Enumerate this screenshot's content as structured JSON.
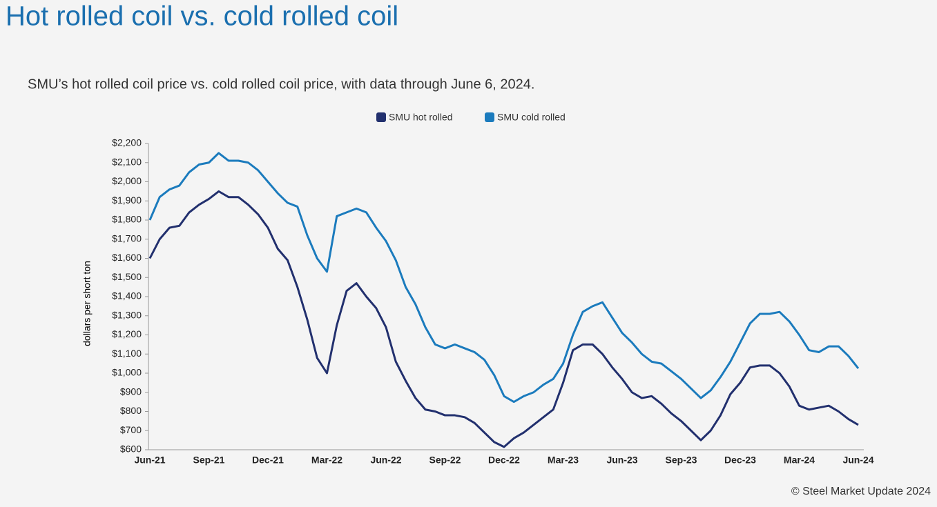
{
  "chart_data": {
    "type": "line",
    "title": "Hot rolled coil vs. cold rolled coil",
    "subtitle": "SMU’s hot rolled coil price vs. cold rolled coil price, with data through June 6, 2024.",
    "y_label": "dollars per short ton",
    "source": "© Steel Market Update 2024",
    "categories": [
      "Jun-21",
      null,
      null,
      null,
      null,
      null,
      "Sep-21",
      null,
      null,
      null,
      null,
      null,
      "Dec-21",
      null,
      null,
      null,
      null,
      null,
      "Mar-22",
      null,
      null,
      null,
      null,
      null,
      "Jun-22",
      null,
      null,
      null,
      null,
      null,
      "Sep-22",
      null,
      null,
      null,
      null,
      null,
      "Dec-22",
      null,
      null,
      null,
      null,
      null,
      "Mar-23",
      null,
      null,
      null,
      null,
      null,
      "Jun-23",
      null,
      null,
      null,
      null,
      null,
      "Sep-23",
      null,
      null,
      null,
      null,
      null,
      "Dec-23",
      null,
      null,
      null,
      null,
      null,
      "Mar-24",
      null,
      null,
      null,
      null,
      null,
      "Jun-24"
    ],
    "series": [
      {
        "name": "SMU hot rolled",
        "color": "#22306e",
        "values": [
          1600,
          1700,
          1760,
          1770,
          1840,
          1880,
          1910,
          1950,
          1920,
          1920,
          1880,
          1830,
          1760,
          1650,
          1590,
          1450,
          1280,
          1080,
          1000,
          1250,
          1430,
          1470,
          1400,
          1340,
          1240,
          1060,
          960,
          870,
          810,
          800,
          780,
          780,
          770,
          740,
          690,
          640,
          615,
          660,
          690,
          730,
          770,
          810,
          950,
          1120,
          1150,
          1150,
          1100,
          1030,
          970,
          900,
          870,
          880,
          840,
          790,
          750,
          700,
          650,
          700,
          780,
          890,
          950,
          1030,
          1040,
          1040,
          1000,
          930,
          830,
          810,
          820,
          830,
          800,
          760,
          730
        ]
      },
      {
        "name": "SMU cold rolled",
        "color": "#1b7bbd",
        "values": [
          1800,
          1920,
          1960,
          1980,
          2050,
          2090,
          2100,
          2150,
          2110,
          2110,
          2100,
          2060,
          2000,
          1940,
          1890,
          1870,
          1720,
          1600,
          1530,
          1820,
          1840,
          1860,
          1840,
          1760,
          1690,
          1590,
          1450,
          1360,
          1240,
          1150,
          1130,
          1150,
          1130,
          1110,
          1070,
          990,
          880,
          850,
          880,
          900,
          940,
          970,
          1050,
          1200,
          1320,
          1350,
          1370,
          1290,
          1210,
          1160,
          1100,
          1060,
          1050,
          1010,
          970,
          920,
          870,
          910,
          980,
          1060,
          1160,
          1260,
          1310,
          1310,
          1320,
          1270,
          1200,
          1120,
          1110,
          1140,
          1140,
          1090,
          1025
        ]
      }
    ],
    "ylim": [
      600,
      2200
    ],
    "yticks": [
      {
        "value": 600,
        "label": "$600"
      },
      {
        "value": 700,
        "label": "$700"
      },
      {
        "value": 800,
        "label": "$800"
      },
      {
        "value": 900,
        "label": "$900"
      },
      {
        "value": 1000,
        "label": "$1,000"
      },
      {
        "value": 1100,
        "label": "$1,100"
      },
      {
        "value": 1200,
        "label": "$1,200"
      },
      {
        "value": 1300,
        "label": "$1,300"
      },
      {
        "value": 1400,
        "label": "$1,400"
      },
      {
        "value": 1500,
        "label": "$1,500"
      },
      {
        "value": 1600,
        "label": "$1,600"
      },
      {
        "value": 1700,
        "label": "$1,700"
      },
      {
        "value": 1800,
        "label": "$1,800"
      },
      {
        "value": 1900,
        "label": "$1,900"
      },
      {
        "value": 2000,
        "label": "$2,000"
      },
      {
        "value": 2100,
        "label": "$2,100"
      },
      {
        "value": 2200,
        "label": "$2,200"
      }
    ],
    "grid": false
  }
}
